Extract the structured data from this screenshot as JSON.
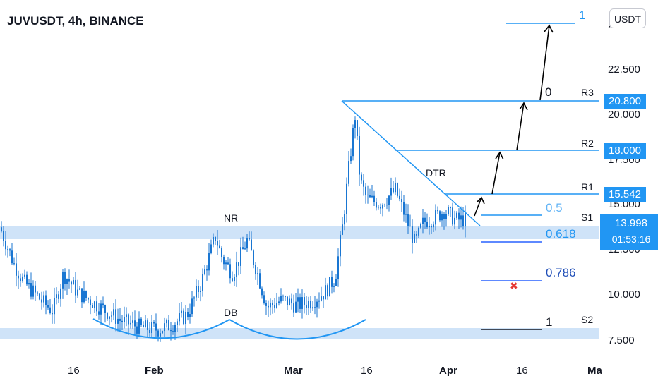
{
  "header": {
    "title": "JUVUSDT, 4h, BINANCE"
  },
  "axis_unit": "USDT",
  "colors": {
    "candle": "#1976d2",
    "line": "#2196f3",
    "zone": "#cfe3f8",
    "arrow": "#000000",
    "marker": "#e53935",
    "tag": "#2196f3",
    "fib_text": "#2962ff"
  },
  "chart_data": {
    "type": "candlestick",
    "symbol": "JUVUSDT",
    "interval": "4h",
    "exchange": "BINANCE",
    "ylim": [
      6.9,
      25.2
    ],
    "y_ticks": [
      "7.500",
      "10.000",
      "12.500",
      "15.000",
      "17.500",
      "20.000",
      "22.500",
      "2"
    ],
    "x_ticks": [
      "16",
      "Feb",
      "Mar",
      "16",
      "Apr",
      "16",
      "Ma"
    ],
    "price_tags": [
      {
        "label": "20.800",
        "value": 20.8
      },
      {
        "label": "18.000",
        "value": 18.0
      },
      {
        "label": "15.542",
        "value": 15.542
      }
    ],
    "current_price": {
      "price": "13.998",
      "countdown": "01:53:16",
      "value": 13.998
    },
    "levels": [
      {
        "label": "R3",
        "value": 20.8
      },
      {
        "label": "R2",
        "value": 18.0
      },
      {
        "label": "R1",
        "value": 15.542
      },
      {
        "label": "S1",
        "value": 14.3
      },
      {
        "label": "S2",
        "value": 8.1
      }
    ],
    "zones": [
      {
        "from": 12.9,
        "to": 13.7
      },
      {
        "from": 7.5,
        "to": 8.1
      }
    ],
    "fibonacci": [
      {
        "label": "1",
        "value": 24.2
      },
      {
        "label": "0",
        "value": 20.8
      },
      {
        "label": "0.5",
        "value": 14.4
      },
      {
        "label": "0.618",
        "value": 13.4
      },
      {
        "label": "0.786",
        "value": 10.7
      },
      {
        "label": "1",
        "value": 8.1
      }
    ],
    "annotations": [
      "NR",
      "DB",
      "DTR"
    ],
    "price_path": [
      [
        0,
        13.5
      ],
      [
        20,
        11.5
      ],
      [
        35,
        10.5
      ],
      [
        60,
        9.5
      ],
      [
        75,
        9.0
      ],
      [
        90,
        11.0
      ],
      [
        110,
        10.0
      ],
      [
        130,
        9.5
      ],
      [
        150,
        9.0
      ],
      [
        170,
        8.5
      ],
      [
        200,
        8.1
      ],
      [
        225,
        8.0
      ],
      [
        245,
        8.3
      ],
      [
        265,
        8.8
      ],
      [
        285,
        10.5
      ],
      [
        305,
        13.0
      ],
      [
        315,
        11.8
      ],
      [
        330,
        11.0
      ],
      [
        350,
        12.8
      ],
      [
        365,
        11.0
      ],
      [
        378,
        9.2
      ],
      [
        400,
        9.6
      ],
      [
        420,
        9.3
      ],
      [
        440,
        9.5
      ],
      [
        460,
        10.0
      ],
      [
        475,
        10.8
      ],
      [
        485,
        13.5
      ],
      [
        495,
        17.0
      ],
      [
        503,
        19.5
      ],
      [
        510,
        16.0
      ],
      [
        520,
        15.0
      ],
      [
        540,
        14.8
      ],
      [
        560,
        15.5
      ],
      [
        575,
        14.0
      ],
      [
        588,
        12.6
      ],
      [
        600,
        13.8
      ],
      [
        615,
        14.0
      ],
      [
        630,
        14.4
      ],
      [
        645,
        13.9
      ],
      [
        660,
        13.9
      ]
    ]
  },
  "labels": {
    "nr": "NR",
    "db": "DB",
    "dtr": "DTR",
    "r3": "R3",
    "r2": "R2",
    "r1": "R1",
    "s1": "S1",
    "s2": "S2",
    "fib_top": "1",
    "fib_0": "0",
    "fib_05": "0.5",
    "fib_0618": "0.618",
    "fib_0786": "0.786",
    "fib_1": "1",
    "x_16a": "16",
    "x_feb": "Feb",
    "x_mar": "Mar",
    "x_16b": "16",
    "x_apr": "Apr",
    "x_16c": "16",
    "x_ma": "Ma",
    "y_7500": "7.500",
    "y_10000": "10.000",
    "y_12500": "12.500",
    "y_15000": "15.000",
    "y_17500": "17.500",
    "y_20000": "20.000",
    "y_22500": "22.500",
    "y_top": "2"
  }
}
